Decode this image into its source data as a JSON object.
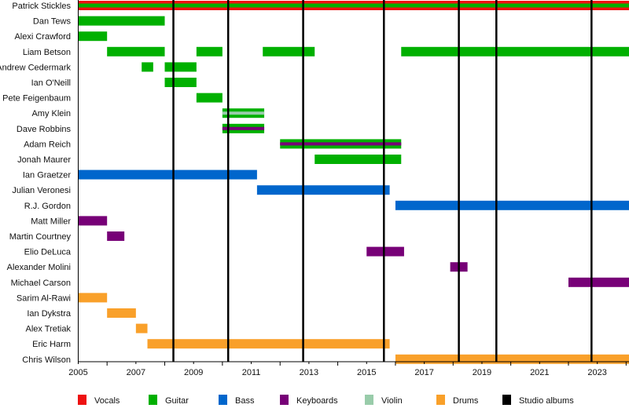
{
  "chart_data": {
    "type": "timeline",
    "xlim": [
      2005,
      2024.1
    ],
    "xticks": [
      "2005",
      "2007",
      "2009",
      "2011",
      "2013",
      "2015",
      "2017",
      "2019",
      "2021",
      "2023"
    ],
    "minor_ticks": "yearly",
    "colors": {
      "Vocals": "#ee1111",
      "Guitar": "#00b000",
      "Bass": "#0066cc",
      "Keyboards": "#770077",
      "Violin": "#99ccaa",
      "Drums": "#f9a02a",
      "Studio albums": "#000000"
    },
    "legend": [
      "Vocals",
      "Guitar",
      "Bass",
      "Keyboards",
      "Violin",
      "Drums",
      "Studio albums"
    ],
    "legend_placement": "bottom",
    "studio_albums": [
      2008.3,
      2010.2,
      2012.8,
      2015.6,
      2018.2,
      2019.5,
      2022.8
    ],
    "members": [
      {
        "name": "Patrick Stickles",
        "bars": [
          {
            "start": 2005,
            "end": 2024.1,
            "roles": [
              "Vocals",
              "Guitar"
            ]
          }
        ]
      },
      {
        "name": "Dan Tews",
        "bars": [
          {
            "start": 2005,
            "end": 2008.0,
            "roles": [
              "Guitar"
            ]
          }
        ]
      },
      {
        "name": "Alexi Crawford",
        "bars": [
          {
            "start": 2005,
            "end": 2006.0,
            "roles": [
              "Guitar"
            ]
          }
        ]
      },
      {
        "name": "Liam Betson",
        "bars": [
          {
            "start": 2006.0,
            "end": 2008.0,
            "roles": [
              "Guitar"
            ]
          },
          {
            "start": 2009.1,
            "end": 2010.0,
            "roles": [
              "Guitar"
            ]
          },
          {
            "start": 2011.4,
            "end": 2013.2,
            "roles": [
              "Guitar"
            ]
          },
          {
            "start": 2016.2,
            "end": 2024.1,
            "roles": [
              "Guitar"
            ]
          }
        ]
      },
      {
        "name": "Andrew Cedermark",
        "bars": [
          {
            "start": 2007.2,
            "end": 2007.6,
            "roles": [
              "Guitar"
            ]
          },
          {
            "start": 2008.0,
            "end": 2009.1,
            "roles": [
              "Guitar"
            ]
          }
        ]
      },
      {
        "name": "Ian O'Neill",
        "bars": [
          {
            "start": 2008.0,
            "end": 2009.1,
            "roles": [
              "Guitar"
            ]
          }
        ]
      },
      {
        "name": "Pete Feigenbaum",
        "bars": [
          {
            "start": 2009.1,
            "end": 2010.0,
            "roles": [
              "Guitar"
            ]
          }
        ]
      },
      {
        "name": "Amy Klein",
        "bars": [
          {
            "start": 2010.0,
            "end": 2011.45,
            "roles": [
              "Guitar",
              "Violin"
            ]
          }
        ]
      },
      {
        "name": "Dave Robbins",
        "bars": [
          {
            "start": 2010.0,
            "end": 2011.45,
            "roles": [
              "Guitar",
              "Keyboards"
            ]
          }
        ]
      },
      {
        "name": "Adam Reich",
        "bars": [
          {
            "start": 2012.0,
            "end": 2016.2,
            "roles": [
              "Guitar",
              "Keyboards"
            ]
          }
        ]
      },
      {
        "name": "Jonah Maurer",
        "bars": [
          {
            "start": 2013.2,
            "end": 2016.2,
            "roles": [
              "Guitar"
            ]
          }
        ]
      },
      {
        "name": "Ian Graetzer",
        "bars": [
          {
            "start": 2005,
            "end": 2011.2,
            "roles": [
              "Bass"
            ]
          }
        ]
      },
      {
        "name": "Julian Veronesi",
        "bars": [
          {
            "start": 2011.2,
            "end": 2015.8,
            "roles": [
              "Bass"
            ]
          }
        ]
      },
      {
        "name": "R.J. Gordon",
        "bars": [
          {
            "start": 2016.0,
            "end": 2024.1,
            "roles": [
              "Bass"
            ]
          }
        ]
      },
      {
        "name": "Matt Miller",
        "bars": [
          {
            "start": 2005,
            "end": 2006.0,
            "roles": [
              "Keyboards"
            ]
          }
        ]
      },
      {
        "name": "Martin Courtney",
        "bars": [
          {
            "start": 2006.0,
            "end": 2006.6,
            "roles": [
              "Keyboards"
            ]
          }
        ]
      },
      {
        "name": "Elio DeLuca",
        "bars": [
          {
            "start": 2015.0,
            "end": 2016.3,
            "roles": [
              "Keyboards"
            ]
          }
        ]
      },
      {
        "name": "Alexander Molini",
        "bars": [
          {
            "start": 2017.9,
            "end": 2018.5,
            "roles": [
              "Keyboards"
            ]
          }
        ]
      },
      {
        "name": "Michael Carson",
        "bars": [
          {
            "start": 2022.0,
            "end": 2024.1,
            "roles": [
              "Keyboards"
            ]
          }
        ]
      },
      {
        "name": "Sarim Al-Rawi",
        "bars": [
          {
            "start": 2005,
            "end": 2006.0,
            "roles": [
              "Drums"
            ]
          }
        ]
      },
      {
        "name": "Ian Dykstra",
        "bars": [
          {
            "start": 2006.0,
            "end": 2007.0,
            "roles": [
              "Drums"
            ]
          }
        ]
      },
      {
        "name": "Alex Tretiak",
        "bars": [
          {
            "start": 2007.0,
            "end": 2007.4,
            "roles": [
              "Drums"
            ]
          }
        ]
      },
      {
        "name": "Eric Harm",
        "bars": [
          {
            "start": 2007.4,
            "end": 2015.8,
            "roles": [
              "Drums"
            ]
          }
        ]
      },
      {
        "name": "Chris Wilson",
        "bars": [
          {
            "start": 2016.0,
            "end": 2024.1,
            "roles": [
              "Drums"
            ]
          }
        ]
      }
    ]
  }
}
